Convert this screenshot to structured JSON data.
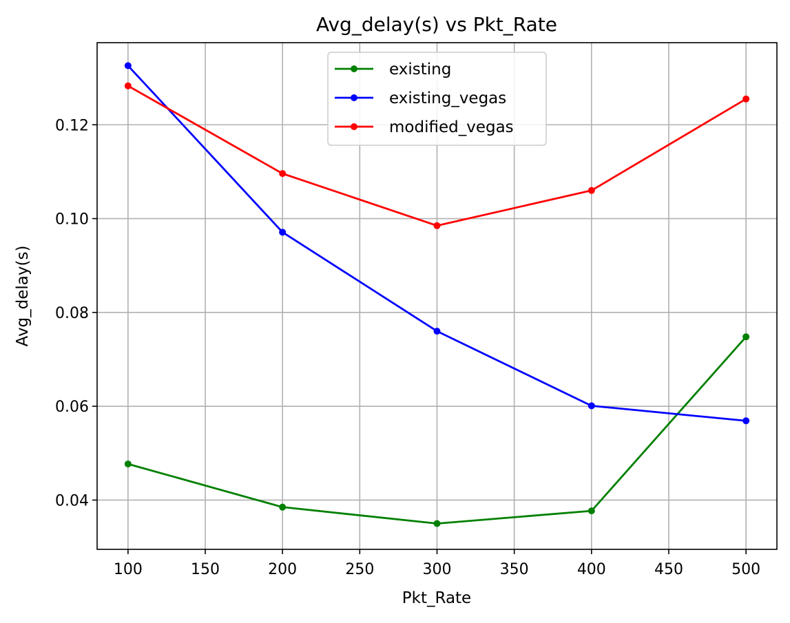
{
  "chart_data": {
    "type": "line",
    "title": "Avg_delay(s) vs Pkt_Rate",
    "xlabel": "Pkt_Rate",
    "ylabel": "Avg_delay(s)",
    "x": [
      100,
      200,
      300,
      400,
      500
    ],
    "xlim": [
      80,
      520
    ],
    "ylim": [
      0.0295,
      0.1375
    ],
    "xticks": [
      100,
      150,
      200,
      250,
      300,
      350,
      400,
      450,
      500
    ],
    "xtick_labels": [
      "100",
      "150",
      "200",
      "250",
      "300",
      "350",
      "400",
      "450",
      "500"
    ],
    "yticks": [
      0.04,
      0.06,
      0.08,
      0.1,
      0.12
    ],
    "ytick_labels": [
      "0.04",
      "0.06",
      "0.08",
      "0.10",
      "0.12"
    ],
    "grid": true,
    "legend_position": "top-center",
    "marker": "point",
    "series": [
      {
        "name": "existing",
        "color": "#008000",
        "values": [
          0.0477,
          0.0385,
          0.035,
          0.0377,
          0.0748
        ]
      },
      {
        "name": "existing_vegas",
        "color": "#0000ff",
        "values": [
          0.1326,
          0.0971,
          0.076,
          0.0601,
          0.0569
        ]
      },
      {
        "name": "modified_vegas",
        "color": "#ff0000",
        "values": [
          0.1283,
          0.1096,
          0.0985,
          0.106,
          0.1255
        ]
      }
    ]
  }
}
